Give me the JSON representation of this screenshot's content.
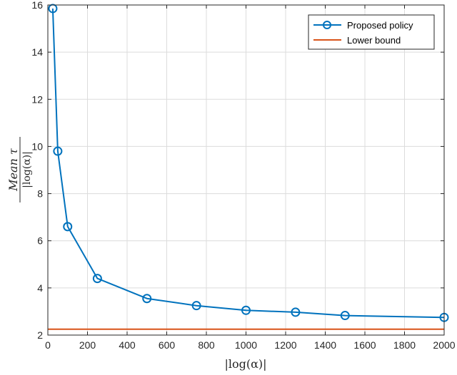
{
  "chart_data": {
    "type": "line",
    "xlabel": "|log(α)|",
    "ylabel": {
      "numerator": "Mean τ",
      "denominator": "|log(α)|"
    },
    "xlim": [
      0,
      2000
    ],
    "ylim": [
      2,
      16
    ],
    "x_ticks": [
      0,
      200,
      400,
      600,
      800,
      1000,
      1200,
      1400,
      1600,
      1800,
      2000
    ],
    "y_ticks": [
      2,
      4,
      6,
      8,
      10,
      12,
      14,
      16
    ],
    "grid": true,
    "legend_position": "top-right",
    "series": [
      {
        "name": "Proposed policy",
        "color": "#0072bd",
        "marker": "circle",
        "x": [
          25,
          50,
          100,
          250,
          500,
          750,
          1000,
          1250,
          1500,
          2000
        ],
        "y": [
          15.85,
          9.8,
          6.6,
          4.4,
          3.55,
          3.25,
          3.05,
          2.97,
          2.83,
          2.75
        ]
      },
      {
        "name": "Lower bound",
        "color": "#d95319",
        "marker": "none",
        "x": [
          0,
          2000
        ],
        "y": [
          2.25,
          2.25
        ]
      }
    ]
  }
}
